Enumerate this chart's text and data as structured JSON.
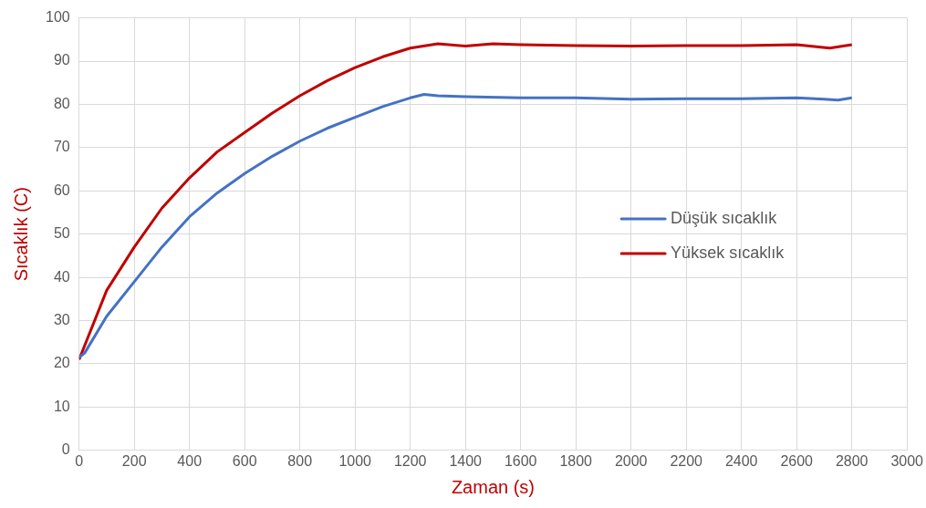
{
  "chart_data": {
    "type": "line",
    "xlabel": "Zaman (s)",
    "ylabel": "Sıcaklık (C)",
    "xlim": [
      0,
      3000
    ],
    "xticks": [
      0,
      200,
      400,
      600,
      800,
      1000,
      1200,
      1400,
      1600,
      1800,
      2000,
      2200,
      2400,
      2600,
      2800,
      3000
    ],
    "ylim": [
      0,
      100
    ],
    "yticks": [
      0,
      10,
      20,
      30,
      40,
      50,
      60,
      70,
      80,
      90,
      100
    ],
    "grid": true,
    "legend": "right",
    "marker": "none",
    "line_style": "solid",
    "series": [
      {
        "name": "Düşük sıcaklık",
        "color": "#4472c4",
        "x": [
          0,
          20,
          100,
          200,
          300,
          400,
          500,
          600,
          700,
          800,
          900,
          1000,
          1100,
          1200,
          1250,
          1300,
          1400,
          1600,
          1800,
          2000,
          2200,
          2400,
          2600,
          2700,
          2750,
          2800
        ],
        "values": [
          21.5,
          22.5,
          31,
          39,
          47,
          54,
          59.5,
          64,
          68,
          71.5,
          74.5,
          77,
          79.5,
          81.5,
          82.3,
          82,
          81.8,
          81.5,
          81.5,
          81.2,
          81.3,
          81.3,
          81.5,
          81.2,
          81,
          81.5
        ]
      },
      {
        "name": "Yüksek sıcaklık",
        "color": "#c00000",
        "x": [
          0,
          100,
          200,
          300,
          400,
          500,
          600,
          700,
          800,
          900,
          1000,
          1100,
          1200,
          1300,
          1400,
          1500,
          1600,
          1800,
          2000,
          2200,
          2400,
          2600,
          2720,
          2800
        ],
        "values": [
          21,
          37,
          47,
          56,
          63,
          69,
          73.5,
          78,
          82,
          85.5,
          88.5,
          91,
          93,
          94,
          93.5,
          94,
          93.8,
          93.6,
          93.5,
          93.6,
          93.6,
          93.8,
          93,
          93.8
        ]
      }
    ]
  }
}
